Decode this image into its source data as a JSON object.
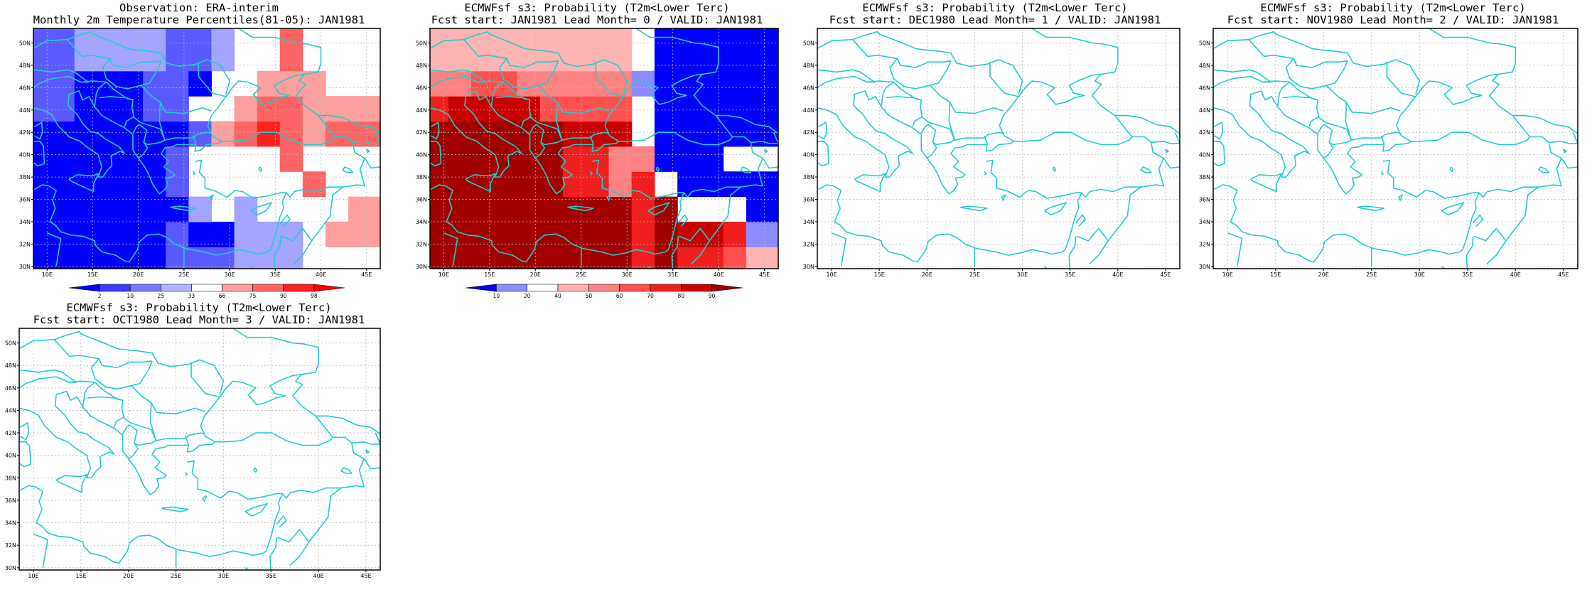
{
  "panels": [
    {
      "title_lines": [
        "Observation: ERA-interim",
        "Monthly 2m Temperature Percentiles(81-05): JAN1981"
      ],
      "field": "obs",
      "colorbar": {
        "labels": [
          "2",
          "10",
          "25",
          "33",
          "66",
          "75",
          "90",
          "98"
        ],
        "colors": [
          "#0000ff",
          "#3c3cff",
          "#7878ff",
          "#b4b4ff",
          "#ffffff",
          "#ffa0a0",
          "#ff6464",
          "#ff2020",
          "#ff0000"
        ]
      }
    },
    {
      "title_lines": [
        "ECMWFsf s3: Probability (T2m<Lower Terc)",
        "Fcst start: JAN1981  Lead Month= 0 / VALID: JAN1981"
      ],
      "field": "fcst",
      "colorbar": {
        "labels": [
          "10",
          "20",
          "40",
          "50",
          "60",
          "70",
          "80",
          "90"
        ],
        "colors": [
          "#0000ff",
          "#8c8cff",
          "#ffffff",
          "#ffb4b4",
          "#ff8282",
          "#ff5050",
          "#f01e1e",
          "#c80000",
          "#a00000"
        ]
      }
    },
    {
      "title_lines": [
        "ECMWFsf s3: Probability (T2m<Lower Terc)",
        "Fcst start: DEC1980  Lead Month= 1 / VALID: JAN1981"
      ],
      "field": "none"
    },
    {
      "title_lines": [
        "ECMWFsf s3: Probability (T2m<Lower Terc)",
        "Fcst start: NOV1980  Lead Month= 2 / VALID: JAN1981"
      ],
      "field": "none"
    },
    {
      "title_lines": [
        "ECMWFsf s3: Probability (T2m<Lower Terc)",
        "Fcst start: OCT1980  Lead Month= 3 / VALID: JAN1981"
      ],
      "field": "none"
    }
  ],
  "map": {
    "lon_labels": [
      "10E",
      "15E",
      "20E",
      "25E",
      "30E",
      "35E",
      "40E",
      "45E"
    ],
    "lat_labels": [
      "30N",
      "32N",
      "34N",
      "36N",
      "38N",
      "40N",
      "42N",
      "44N",
      "46N",
      "48N",
      "50N"
    ],
    "lon_range": [
      8.5,
      46.5
    ],
    "lat_range": [
      29.8,
      51.3
    ],
    "coast_color": "#22cccc",
    "grid_color": "#bbbbbb"
  }
}
